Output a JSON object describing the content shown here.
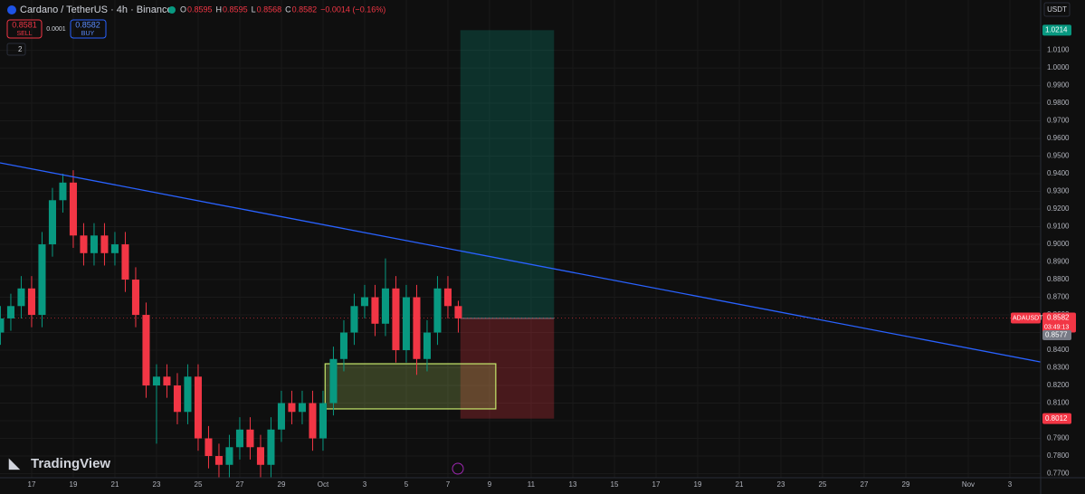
{
  "chart_data": {
    "type": "candlestick",
    "title": "Cardano / TetherUS · 4h · Binance",
    "ohlc_legend": [
      {
        "label": "O",
        "value": "0.8595"
      },
      {
        "label": "H",
        "value": "0.8595"
      },
      {
        "label": "L",
        "value": "0.8568"
      },
      {
        "label": "C",
        "value": "0.8582"
      },
      {
        "label": "",
        "value": "−0.0014 (−0.16%)"
      }
    ],
    "sell": {
      "price": "0.8581",
      "label": "SELL"
    },
    "spread": "0.0001",
    "buy": {
      "price": "0.8582",
      "label": "BUY"
    },
    "indicators_count": "2",
    "currency": "USDT",
    "brand": "TradingView",
    "x": [
      -1.5,
      -1,
      -0.5,
      0,
      0.5,
      1,
      1.5,
      2,
      2.5,
      3,
      3.5,
      4,
      4.5,
      5,
      5.5,
      6,
      6.5,
      7,
      7.5,
      8,
      8.5,
      9,
      9.5,
      10,
      10.5,
      11,
      11.5,
      12,
      12.5,
      13,
      13.5,
      14,
      14.5,
      15,
      15.5,
      16,
      16.5,
      17,
      17.5,
      18,
      18.5,
      19,
      19.5,
      20,
      20.5
    ],
    "open": [
      0.85,
      0.858,
      0.865,
      0.875,
      0.86,
      0.9,
      0.925,
      0.935,
      0.905,
      0.895,
      0.905,
      0.895,
      0.9,
      0.88,
      0.86,
      0.82,
      0.825,
      0.82,
      0.805,
      0.825,
      0.79,
      0.78,
      0.775,
      0.785,
      0.795,
      0.785,
      0.775,
      0.795,
      0.81,
      0.805,
      0.81,
      0.79,
      0.81,
      0.835,
      0.85,
      0.865,
      0.87,
      0.855,
      0.875,
      0.84,
      0.87,
      0.835,
      0.85,
      0.875,
      0.865
    ],
    "high": [
      0.865,
      0.872,
      0.882,
      0.882,
      0.907,
      0.932,
      0.94,
      0.942,
      0.912,
      0.912,
      0.912,
      0.907,
      0.907,
      0.887,
      0.867,
      0.832,
      0.832,
      0.827,
      0.832,
      0.832,
      0.797,
      0.787,
      0.792,
      0.802,
      0.802,
      0.792,
      0.802,
      0.817,
      0.817,
      0.817,
      0.817,
      0.817,
      0.842,
      0.857,
      0.872,
      0.877,
      0.877,
      0.892,
      0.882,
      0.877,
      0.877,
      0.857,
      0.882,
      0.882,
      0.868
    ],
    "low": [
      0.843,
      0.851,
      0.858,
      0.853,
      0.853,
      0.893,
      0.918,
      0.898,
      0.888,
      0.888,
      0.888,
      0.888,
      0.873,
      0.853,
      0.813,
      0.787,
      0.813,
      0.798,
      0.798,
      0.783,
      0.773,
      0.768,
      0.768,
      0.778,
      0.778,
      0.768,
      0.768,
      0.788,
      0.798,
      0.798,
      0.783,
      0.783,
      0.803,
      0.828,
      0.843,
      0.858,
      0.848,
      0.848,
      0.833,
      0.833,
      0.826,
      0.828,
      0.843,
      0.858,
      0.85
    ],
    "close": [
      0.858,
      0.865,
      0.875,
      0.86,
      0.9,
      0.925,
      0.935,
      0.905,
      0.895,
      0.905,
      0.895,
      0.9,
      0.88,
      0.86,
      0.82,
      0.825,
      0.82,
      0.805,
      0.825,
      0.79,
      0.78,
      0.775,
      0.785,
      0.795,
      0.785,
      0.775,
      0.795,
      0.81,
      0.805,
      0.81,
      0.79,
      0.81,
      0.835,
      0.85,
      0.865,
      0.87,
      0.855,
      0.875,
      0.84,
      0.87,
      0.835,
      0.85,
      0.875,
      0.865,
      0.858
    ],
    "up_color": "#089981",
    "down_color": "#f23645",
    "xlim": [
      -1.52,
      48.48
    ],
    "ylim": [
      0.7677,
      1.0385
    ],
    "xticks": [
      {
        "value": 0,
        "label": "17"
      },
      {
        "value": 2,
        "label": "19"
      },
      {
        "value": 4,
        "label": "21"
      },
      {
        "value": 6,
        "label": "23"
      },
      {
        "value": 8,
        "label": "25"
      },
      {
        "value": 10,
        "label": "27"
      },
      {
        "value": 12,
        "label": "29"
      },
      {
        "value": 14,
        "label": "Oct"
      },
      {
        "value": 16,
        "label": "3"
      },
      {
        "value": 18,
        "label": "5"
      },
      {
        "value": 20,
        "label": "7"
      },
      {
        "value": 22,
        "label": "9"
      },
      {
        "value": 24,
        "label": "11"
      },
      {
        "value": 26,
        "label": "13"
      },
      {
        "value": 28,
        "label": "15"
      },
      {
        "value": 30,
        "label": "17"
      },
      {
        "value": 32,
        "label": "19"
      },
      {
        "value": 34,
        "label": "21"
      },
      {
        "value": 36,
        "label": "23"
      },
      {
        "value": 38,
        "label": "25"
      },
      {
        "value": 40,
        "label": "27"
      },
      {
        "value": 42,
        "label": "29"
      },
      {
        "value": 45,
        "label": "Nov"
      },
      {
        "value": 47,
        "label": "3"
      }
    ],
    "yticks": [
      {
        "value": 0.77,
        "label": "0.7700"
      },
      {
        "value": 0.78,
        "label": "0.7800"
      },
      {
        "value": 0.79,
        "label": "0.7900"
      },
      {
        "value": 0.8,
        "label": "0.8000"
      },
      {
        "value": 0.81,
        "label": "0.8100"
      },
      {
        "value": 0.82,
        "label": "0.8200"
      },
      {
        "value": 0.83,
        "label": "0.8300"
      },
      {
        "value": 0.84,
        "label": "0.8400"
      },
      {
        "value": 0.85,
        "label": "0.8500"
      },
      {
        "value": 0.86,
        "label": "0.8600"
      },
      {
        "value": 0.87,
        "label": "0.8700"
      },
      {
        "value": 0.88,
        "label": "0.8800"
      },
      {
        "value": 0.89,
        "label": "0.8900"
      },
      {
        "value": 0.9,
        "label": "0.9000"
      },
      {
        "value": 0.91,
        "label": "0.9100"
      },
      {
        "value": 0.92,
        "label": "0.9200"
      },
      {
        "value": 0.93,
        "label": "0.9300"
      },
      {
        "value": 0.94,
        "label": "0.9400"
      },
      {
        "value": 0.95,
        "label": "0.9500"
      },
      {
        "value": 0.96,
        "label": "0.9600"
      },
      {
        "value": 0.97,
        "label": "0.9700"
      },
      {
        "value": 0.98,
        "label": "0.9800"
      },
      {
        "value": 0.99,
        "label": "0.9900"
      },
      {
        "value": 1.0,
        "label": "1.0000"
      },
      {
        "value": 1.01,
        "label": "1.0100"
      }
    ],
    "grid": true,
    "trendline": {
      "x": [
        -1.52,
        48.48
      ],
      "y": [
        0.9462,
        0.8333
      ],
      "color": "#2962ff"
    },
    "zone": {
      "x": [
        14.1,
        22.3
      ],
      "y": [
        0.8067,
        0.8323
      ],
      "color": "#c6e86c"
    },
    "position": {
      "x": [
        20.6,
        25.1
      ],
      "entry": 0.858,
      "target": 1.0214,
      "stop": 0.8012
    },
    "symbol": "ADAUSDT",
    "last_price": 0.8582,
    "countdown": "03:49:13",
    "prev_price": 0.8577
  }
}
